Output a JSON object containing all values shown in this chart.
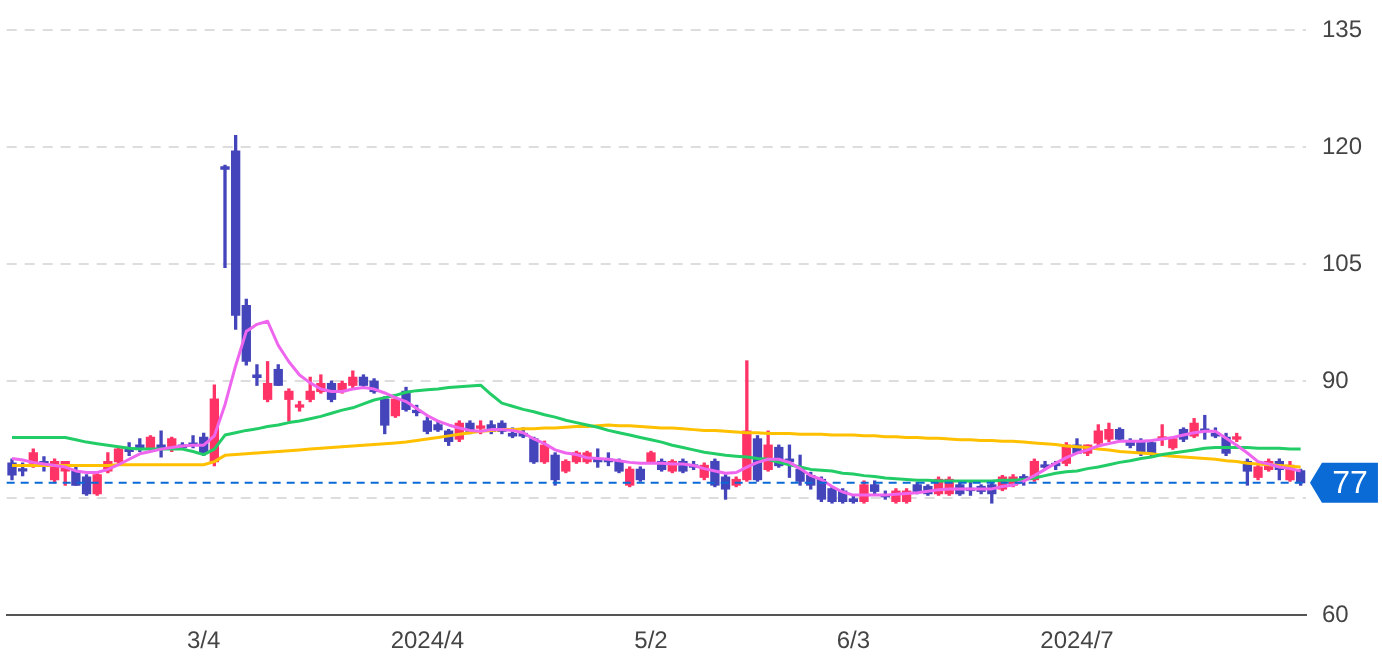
{
  "chart_data": {
    "type": "candlestick",
    "categories": [
      null,
      null,
      null,
      null,
      null,
      null,
      null,
      null,
      null,
      null,
      null,
      null,
      null,
      null,
      null,
      null,
      null,
      null,
      "3/4",
      null,
      null,
      null,
      null,
      null,
      null,
      null,
      null,
      null,
      null,
      null,
      null,
      null,
      null,
      null,
      null,
      null,
      null,
      null,
      null,
      "2024/4",
      null,
      null,
      null,
      null,
      null,
      null,
      null,
      null,
      null,
      null,
      null,
      null,
      null,
      null,
      null,
      null,
      null,
      null,
      null,
      null,
      "5/2",
      null,
      null,
      null,
      null,
      null,
      null,
      null,
      null,
      null,
      null,
      null,
      null,
      null,
      null,
      null,
      null,
      null,
      null,
      "6/3",
      null,
      null,
      null,
      null,
      null,
      null,
      null,
      null,
      null,
      null,
      null,
      null,
      null,
      null,
      null,
      null,
      null,
      null,
      null,
      null,
      "2024/7",
      null,
      null,
      null,
      null,
      null,
      null,
      null,
      null,
      null,
      null,
      null,
      null,
      null,
      null,
      null,
      null,
      null,
      null,
      null,
      null,
      null
    ],
    "ohlc": [
      [
        79.5,
        80,
        77.4,
        78
      ],
      [
        78.7,
        79.5,
        77.9,
        78.5
      ],
      [
        79.5,
        81.3,
        79,
        80.8
      ],
      [
        79.7,
        80.3,
        78.5,
        79.2
      ],
      [
        77.4,
        80,
        77,
        79.7
      ],
      [
        78.5,
        79.7,
        76.7,
        79.7
      ],
      [
        78.5,
        79,
        76.7,
        76.7
      ],
      [
        77.7,
        78,
        75.4,
        75.6
      ],
      [
        75.6,
        78.3,
        75.4,
        78
      ],
      [
        78.5,
        80.8,
        78.3,
        79.7
      ],
      [
        79.7,
        81.5,
        79.5,
        81.3
      ],
      [
        81.3,
        82.1,
        80.5,
        81
      ],
      [
        81.8,
        82.6,
        81,
        81.5
      ],
      [
        81.3,
        83,
        81,
        82.8
      ],
      [
        81.8,
        83.6,
        80.3,
        81.5
      ],
      [
        81.3,
        82.8,
        81,
        82.6
      ],
      [
        81.8,
        82.1,
        81.3,
        81.5
      ],
      [
        81.8,
        83,
        81.5,
        81.8
      ],
      [
        82.8,
        83.3,
        80.5,
        80.8
      ],
      [
        79.7,
        89.5,
        79.2,
        87.7
      ],
      [
        117.5,
        117.7,
        104.6,
        117.2
      ],
      [
        119.5,
        121.5,
        96.7,
        98.5
      ],
      [
        99.7,
        100.5,
        92.1,
        92.6
      ],
      [
        90.8,
        92.1,
        89.5,
        90.5
      ],
      [
        87.7,
        92.5,
        87.4,
        89.7
      ],
      [
        91.5,
        92.1,
        89.5,
        89.5
      ],
      [
        87.7,
        89,
        84.9,
        88.7
      ],
      [
        86.7,
        87.4,
        86.2,
        86.9
      ],
      [
        87.7,
        90.5,
        87.4,
        88.7
      ],
      [
        88.7,
        90.8,
        88.5,
        89.7
      ],
      [
        89.7,
        90,
        87.4,
        87.7
      ],
      [
        88.7,
        90,
        88.5,
        89.7
      ],
      [
        89.5,
        91.3,
        89.2,
        90.5
      ],
      [
        90.5,
        90.8,
        89.2,
        89.5
      ],
      [
        90,
        90.3,
        88.5,
        88.7
      ],
      [
        87.7,
        88,
        83.3,
        84.4
      ],
      [
        85.6,
        88,
        85.4,
        87.7
      ],
      [
        88.7,
        89.2,
        86.2,
        86.4
      ],
      [
        86.2,
        86.9,
        85.6,
        86
      ],
      [
        84.9,
        85.4,
        83.3,
        83.6
      ],
      [
        84.4,
        84.9,
        83.6,
        83.8
      ],
      [
        83.6,
        83.8,
        81.8,
        82.3
      ],
      [
        82.6,
        84.9,
        82.3,
        84.6
      ],
      [
        84.6,
        84.9,
        83.3,
        83.6
      ],
      [
        84,
        84.9,
        83.3,
        84.2
      ],
      [
        84.4,
        84.9,
        83.3,
        83.6
      ],
      [
        84.6,
        84.9,
        83.3,
        83.6
      ],
      [
        83.3,
        84,
        82.8,
        83
      ],
      [
        83.3,
        84,
        82.8,
        83
      ],
      [
        82.6,
        82.8,
        79.5,
        79.7
      ],
      [
        79.7,
        82.3,
        79.5,
        81.8
      ],
      [
        80.5,
        80.8,
        76.7,
        77.4
      ],
      [
        78.5,
        79.9,
        78.3,
        79.7
      ],
      [
        79.7,
        81,
        79.5,
        80.8
      ],
      [
        79.7,
        81,
        79.5,
        80.8
      ],
      [
        80,
        81.3,
        79,
        79.7
      ],
      [
        80,
        80.8,
        79.2,
        79.7
      ],
      [
        79.7,
        80,
        78.3,
        78.5
      ],
      [
        76.7,
        79,
        76.5,
        78.7
      ],
      [
        78.7,
        79,
        77.2,
        77.4
      ],
      [
        79.7,
        81,
        79.5,
        80.8
      ],
      [
        79.7,
        80,
        78.5,
        78.7
      ],
      [
        78.5,
        79.9,
        78.3,
        79.7
      ],
      [
        79.7,
        80,
        78.3,
        78.5
      ],
      [
        79.2,
        79.7,
        78.7,
        79
      ],
      [
        77.7,
        79.5,
        77.4,
        79.2
      ],
      [
        79.7,
        80,
        76.5,
        76.7
      ],
      [
        77.7,
        78,
        74.9,
        76.2
      ],
      [
        76.7,
        77.7,
        76.5,
        77.4
      ],
      [
        77.4,
        92.6,
        77.2,
        83.6
      ],
      [
        82.6,
        83,
        77.2,
        77.4
      ],
      [
        78.7,
        83.6,
        78.5,
        81.8
      ],
      [
        81.5,
        81.8,
        79,
        79.2
      ],
      [
        80,
        81.8,
        77.7,
        79.7
      ],
      [
        78.7,
        80.5,
        76.7,
        77.2
      ],
      [
        77.9,
        78.3,
        76.2,
        76.7
      ],
      [
        77.4,
        77.7,
        74.6,
        74.9
      ],
      [
        76.2,
        76.5,
        74.4,
        74.6
      ],
      [
        75.9,
        76.2,
        74.4,
        74.6
      ],
      [
        74.9,
        75.4,
        74.4,
        74.6
      ],
      [
        74.6,
        77.2,
        74.4,
        76.7
      ],
      [
        76.7,
        77.2,
        75.6,
        75.9
      ],
      [
        75.4,
        75.9,
        74.9,
        75.2
      ],
      [
        74.6,
        76.2,
        74.4,
        75.9
      ],
      [
        74.6,
        76.2,
        74.4,
        75.9
      ],
      [
        76.7,
        77,
        75.6,
        75.9
      ],
      [
        76.5,
        76.7,
        75.4,
        75.6
      ],
      [
        75.6,
        77.7,
        75.4,
        77.4
      ],
      [
        75.6,
        77.7,
        75.4,
        77.4
      ],
      [
        76.7,
        77,
        75.4,
        75.6
      ],
      [
        76.2,
        77.2,
        75.4,
        76
      ],
      [
        76.5,
        76.7,
        75.6,
        75.9
      ],
      [
        76.7,
        77,
        74.4,
        75.6
      ],
      [
        76.2,
        77.9,
        76,
        77.7
      ],
      [
        76.7,
        78,
        76.5,
        77.7
      ],
      [
        77.7,
        78,
        76.7,
        77.5
      ],
      [
        77.4,
        80,
        77.2,
        79.7
      ],
      [
        79.2,
        79.7,
        78.7,
        79
      ],
      [
        79.2,
        79.7,
        78.7,
        79.2
      ],
      [
        79.5,
        82.1,
        79.2,
        81.8
      ],
      [
        81.8,
        82.6,
        80.8,
        80.8
      ],
      [
        80.8,
        81.8,
        80.5,
        81.8
      ],
      [
        82.1,
        84.4,
        81.8,
        83.6
      ],
      [
        82.6,
        84.6,
        82.3,
        83.8
      ],
      [
        83.8,
        84,
        82.3,
        82.6
      ],
      [
        82.3,
        82.6,
        81.5,
        81.8
      ],
      [
        82.3,
        82.6,
        80.5,
        80.8
      ],
      [
        82.1,
        82.3,
        80.5,
        80.8
      ],
      [
        82.6,
        84.4,
        81.8,
        82.8
      ],
      [
        81.5,
        82.8,
        81.3,
        82.6
      ],
      [
        83.8,
        84,
        82.3,
        82.6
      ],
      [
        83,
        85.2,
        82.8,
        84.6
      ],
      [
        83.6,
        85.6,
        82.6,
        83.6
      ],
      [
        83.3,
        84,
        82.8,
        83
      ],
      [
        82.8,
        83.3,
        80.5,
        80.8
      ],
      [
        82.6,
        83.3,
        82.3,
        82.8
      ],
      [
        79.7,
        80,
        76.7,
        78.5
      ],
      [
        77.7,
        79.5,
        77.4,
        79
      ],
      [
        78.7,
        80,
        78.5,
        79.7
      ],
      [
        79.7,
        80,
        77.4,
        78.7
      ],
      [
        77.4,
        79.7,
        77.2,
        79.2
      ],
      [
        78.5,
        78.7,
        76.7,
        77
      ]
    ],
    "colors": [
      "#4444bb",
      "#4444bb",
      "#ff3366",
      "#4444bb",
      "#ff3366",
      "#ff3366",
      "#4444bb",
      "#4444bb",
      "#ff3366",
      "#ff3366",
      "#ff3366",
      "#4444bb",
      "#4444bb",
      "#ff3366",
      "#4444bb",
      "#ff3366",
      "#4444bb",
      "#4444bb",
      "#4444bb",
      "#ff3366",
      "#4444bb",
      "#4444bb",
      "#4444bb",
      "#4444bb",
      "#ff3366",
      "#4444bb",
      "#ff3366",
      "#ff3366",
      "#ff3366",
      "#ff3366",
      "#4444bb",
      "#ff3366",
      "#ff3366",
      "#4444bb",
      "#4444bb",
      "#4444bb",
      "#ff3366",
      "#4444bb",
      "#4444bb",
      "#4444bb",
      "#4444bb",
      "#4444bb",
      "#ff3366",
      "#4444bb",
      "#ff3366",
      "#4444bb",
      "#4444bb",
      "#4444bb",
      "#4444bb",
      "#4444bb",
      "#ff3366",
      "#4444bb",
      "#ff3366",
      "#ff3366",
      "#ff3366",
      "#4444bb",
      "#4444bb",
      "#4444bb",
      "#ff3366",
      "#4444bb",
      "#ff3366",
      "#4444bb",
      "#ff3366",
      "#4444bb",
      "#4444bb",
      "#ff3366",
      "#4444bb",
      "#4444bb",
      "#ff3366",
      "#ff3366",
      "#4444bb",
      "#ff3366",
      "#4444bb",
      "#4444bb",
      "#4444bb",
      "#4444bb",
      "#4444bb",
      "#4444bb",
      "#4444bb",
      "#4444bb",
      "#ff3366",
      "#4444bb",
      "#4444bb",
      "#ff3366",
      "#ff3366",
      "#4444bb",
      "#4444bb",
      "#ff3366",
      "#ff3366",
      "#4444bb",
      "#4444bb",
      "#4444bb",
      "#4444bb",
      "#ff3366",
      "#ff3366",
      "#4444bb",
      "#ff3366",
      "#4444bb",
      "#4444bb",
      "#ff3366",
      "#4444bb",
      "#ff3366",
      "#ff3366",
      "#ff3366",
      "#4444bb",
      "#4444bb",
      "#4444bb",
      "#4444bb",
      "#ff3366",
      "#ff3366",
      "#4444bb",
      "#ff3366",
      "#4444bb",
      "#4444bb",
      "#4444bb",
      "#ff3366",
      "#4444bb",
      "#ff3366",
      "#ff3366",
      "#4444bb",
      "#ff3366",
      "#4444bb"
    ],
    "series": [
      {
        "type": "line",
        "color": "#ee66ee",
        "values": [
          80.1,
          79.9,
          79.6,
          79.4,
          79.2,
          79.0,
          78.5,
          78.3,
          78.3,
          78.7,
          79.3,
          80.0,
          80.7,
          81.0,
          81.3,
          81.5,
          81.7,
          81.8,
          81.8,
          83.0,
          87.0,
          92.0,
          96.4,
          97.3,
          97.7,
          94.6,
          92.5,
          90.8,
          89.8,
          89.0,
          88.7,
          88.7,
          89.0,
          89.2,
          89.0,
          88.5,
          87.9,
          87.4,
          86.5,
          85.6,
          84.9,
          84.4,
          84.0,
          83.7,
          83.6,
          83.8,
          83.8,
          83.7,
          83.4,
          82.6,
          82.0,
          81.2,
          80.8,
          80.6,
          80.2,
          80.1,
          80.0,
          79.8,
          79.6,
          79.5,
          79.5,
          79.5,
          79.4,
          79.4,
          79.2,
          78.8,
          78.5,
          78.2,
          78.3,
          79.0,
          79.6,
          80.0,
          80.0,
          79.6,
          78.8,
          77.9,
          77.4,
          76.5,
          75.8,
          75.4,
          75.4,
          75.4,
          75.4,
          75.5,
          75.6,
          75.7,
          75.9,
          76.1,
          76.2,
          76.2,
          76.2,
          76.2,
          76.2,
          76.5,
          76.7,
          77.2,
          77.9,
          78.7,
          79.5,
          80.2,
          80.8,
          81.2,
          81.7,
          82.0,
          82.3,
          82.3,
          82.3,
          82.4,
          82.6,
          82.8,
          83.1,
          83.4,
          83.6,
          83.6,
          82.7,
          81.8,
          80.8,
          79.7,
          79.4,
          79.0,
          78.8,
          78.5
        ]
      },
      {
        "type": "line",
        "color": "#22cc66",
        "values": [
          82.8,
          82.8,
          82.8,
          82.8,
          82.8,
          82.8,
          82.5,
          82.2,
          82.0,
          81.8,
          81.6,
          81.4,
          81.3,
          81.3,
          81.3,
          81.3,
          81.3,
          81.0,
          80.6,
          81.3,
          83.1,
          83.4,
          83.7,
          83.9,
          84.2,
          84.4,
          84.7,
          84.9,
          85.2,
          85.5,
          85.9,
          86.3,
          86.6,
          87.1,
          87.6,
          87.9,
          88.2,
          88.6,
          88.8,
          88.9,
          89.0,
          89.2,
          89.3,
          89.4,
          89.5,
          88.3,
          87.2,
          86.8,
          86.4,
          86.1,
          85.7,
          85.4,
          85.0,
          84.7,
          84.4,
          84.1,
          83.7,
          83.4,
          83.1,
          82.8,
          82.5,
          82.2,
          81.8,
          81.5,
          81.2,
          80.9,
          80.7,
          80.5,
          80.4,
          80.3,
          80.1,
          80.0,
          79.6,
          79.3,
          79.0,
          78.7,
          78.6,
          78.5,
          78.2,
          78.1,
          77.9,
          77.8,
          77.6,
          77.5,
          77.4,
          77.3,
          77.3,
          77.2,
          77.2,
          77.2,
          77.2,
          77.2,
          77.2,
          77.3,
          77.3,
          77.4,
          77.6,
          77.9,
          78.2,
          78.4,
          78.5,
          78.8,
          79.0,
          79.3,
          79.6,
          79.8,
          80.1,
          80.3,
          80.6,
          80.8,
          81.0,
          81.2,
          81.4,
          81.5,
          81.5,
          81.5,
          81.5,
          81.4,
          81.4,
          81.4,
          81.3,
          81.3
        ]
      },
      {
        "type": "line",
        "color": "#ffc000",
        "values": [
          79.2,
          79.2,
          79.2,
          79.2,
          79.2,
          79.2,
          79.2,
          79.2,
          79.2,
          79.2,
          79.3,
          79.3,
          79.3,
          79.3,
          79.3,
          79.3,
          79.3,
          79.3,
          79.3,
          79.7,
          80.5,
          80.6,
          80.7,
          80.8,
          80.9,
          81.0,
          81.1,
          81.2,
          81.3,
          81.4,
          81.5,
          81.6,
          81.7,
          81.8,
          81.9,
          82.0,
          82.1,
          82.2,
          82.4,
          82.6,
          82.8,
          83.0,
          83.2,
          83.4,
          83.6,
          83.7,
          83.8,
          83.8,
          83.9,
          83.9,
          84.0,
          84.0,
          84.1,
          84.2,
          84.2,
          84.3,
          84.4,
          84.3,
          84.3,
          84.2,
          84.1,
          84.0,
          84.0,
          83.9,
          83.8,
          83.7,
          83.7,
          83.6,
          83.5,
          83.4,
          83.4,
          83.3,
          83.3,
          83.3,
          83.2,
          83.2,
          83.2,
          83.1,
          83.1,
          83.1,
          83.0,
          83.0,
          82.9,
          82.9,
          82.8,
          82.8,
          82.7,
          82.7,
          82.6,
          82.5,
          82.5,
          82.4,
          82.4,
          82.3,
          82.3,
          82.2,
          82.1,
          82.0,
          81.9,
          81.7,
          81.6,
          81.5,
          81.3,
          81.2,
          81.0,
          80.9,
          80.8,
          80.7,
          80.5,
          80.4,
          80.3,
          80.2,
          80.1,
          80.0,
          79.8,
          79.7,
          79.5,
          79.4,
          79.3,
          79.2,
          79.1,
          79.0
        ]
      }
    ],
    "ylim": [
      60,
      135
    ],
    "yticks": [
      60,
      {
        "value": 75,
        "label": null
      },
      90,
      105,
      120,
      135
    ],
    "grid": "y",
    "legend": false,
    "marker": "none",
    "ref_lines": [
      {
        "axis": "y",
        "value": 77,
        "label": "77",
        "color": "#0a6ad6",
        "line_style": "dashed"
      }
    ]
  }
}
